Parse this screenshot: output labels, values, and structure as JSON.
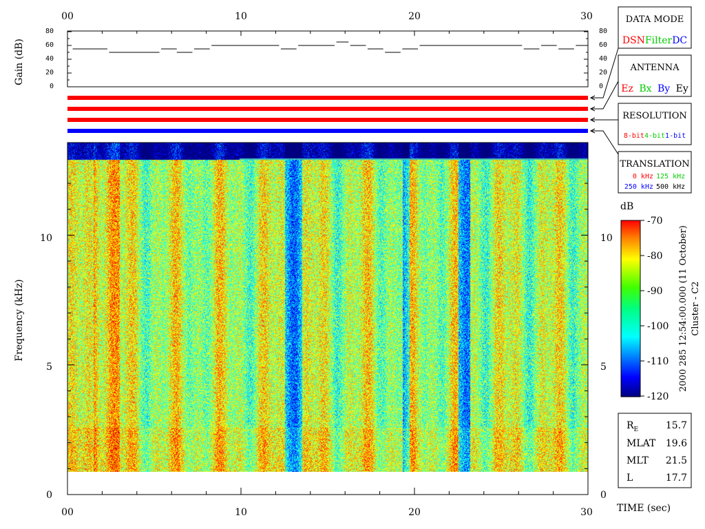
{
  "time_axis": {
    "ticks": [
      "00",
      "10",
      "20",
      "30"
    ],
    "title": "TIME (sec)",
    "range": [
      0,
      30
    ]
  },
  "gain_panel": {
    "ylabel": "Gain (dB)",
    "ticks": [
      "80",
      "60",
      "40",
      "20",
      "0"
    ],
    "ylim": [
      0,
      80
    ]
  },
  "spectrogram": {
    "ylabel": "Frequency (kHz)",
    "ticks": [
      "0",
      "5",
      "10"
    ],
    "ylim": [
      0,
      12.8
    ]
  },
  "legend_boxes": {
    "data_mode": {
      "title": "DATA MODE",
      "items": [
        "DSN",
        "Filter",
        "DC"
      ],
      "colors": [
        "#ff0000",
        "#00cc00",
        "#0000ff"
      ]
    },
    "antenna": {
      "title": "ANTENNA",
      "items": [
        "Ez",
        "Bx",
        "By",
        "Ey"
      ],
      "colors": [
        "#ff0000",
        "#00cc00",
        "#0000ff",
        "#000000"
      ]
    },
    "resolution": {
      "title": "RESOLUTION",
      "items": [
        "8-bit",
        "4-bit",
        "1-bit"
      ],
      "colors": [
        "#ff0000",
        "#00cc00",
        "#0000ff"
      ]
    },
    "translation": {
      "title": "TRANSLATION",
      "items": [
        "0 kHz",
        "125 kHz",
        "250 kHz",
        "500 kHz"
      ],
      "colors": [
        "#ff0000",
        "#00cc00",
        "#0000ff",
        "#000000"
      ]
    }
  },
  "mode_bars": {
    "colors": [
      "#ff0000",
      "#ff0000",
      "#ff0000",
      "#0000ff"
    ]
  },
  "colorbar": {
    "unit": "dB",
    "ticks": [
      "-70",
      "-80",
      "-90",
      "-100",
      "-110",
      "-120"
    ],
    "range": [
      -120,
      -70
    ]
  },
  "side_title": {
    "line1": "2000 285 12:54:00.000 (11 October)",
    "line2": "Cluster - C2"
  },
  "info": [
    {
      "label": "R",
      "sub": "E",
      "value": "15.7"
    },
    {
      "label": "MLAT",
      "sub": "",
      "value": "19.6"
    },
    {
      "label": "MLT",
      "sub": "",
      "value": "21.5"
    },
    {
      "label": "L",
      "sub": "",
      "value": "17.7"
    }
  ],
  "chart_data": {
    "type": "heatmap",
    "title": "",
    "xlabel": "TIME (sec)",
    "ylabel": "Frequency (kHz)",
    "xlim": [
      0,
      30
    ],
    "ylim": [
      0,
      12.8
    ],
    "colorbar_label": "dB",
    "color_range": [
      -120,
      -70
    ],
    "gain_db": {
      "t_start": [
        0.3,
        2.4,
        5.4,
        6.3,
        7.3,
        8.3,
        12.3,
        13.3,
        15.5,
        16.3,
        17.3,
        18.3,
        19.3,
        20.3,
        26.3,
        27.3,
        28.3,
        29.3
      ],
      "t_end": [
        2.3,
        5.3,
        6.3,
        7.2,
        8.2,
        12.2,
        13.2,
        15.4,
        16.2,
        17.2,
        18.2,
        19.2,
        20.2,
        26.2,
        27.2,
        28.2,
        29.2,
        30.0
      ],
      "value": [
        55,
        50,
        55,
        50,
        55,
        60,
        55,
        60,
        65,
        60,
        55,
        50,
        55,
        60,
        55,
        60,
        55,
        60
      ]
    }
  }
}
